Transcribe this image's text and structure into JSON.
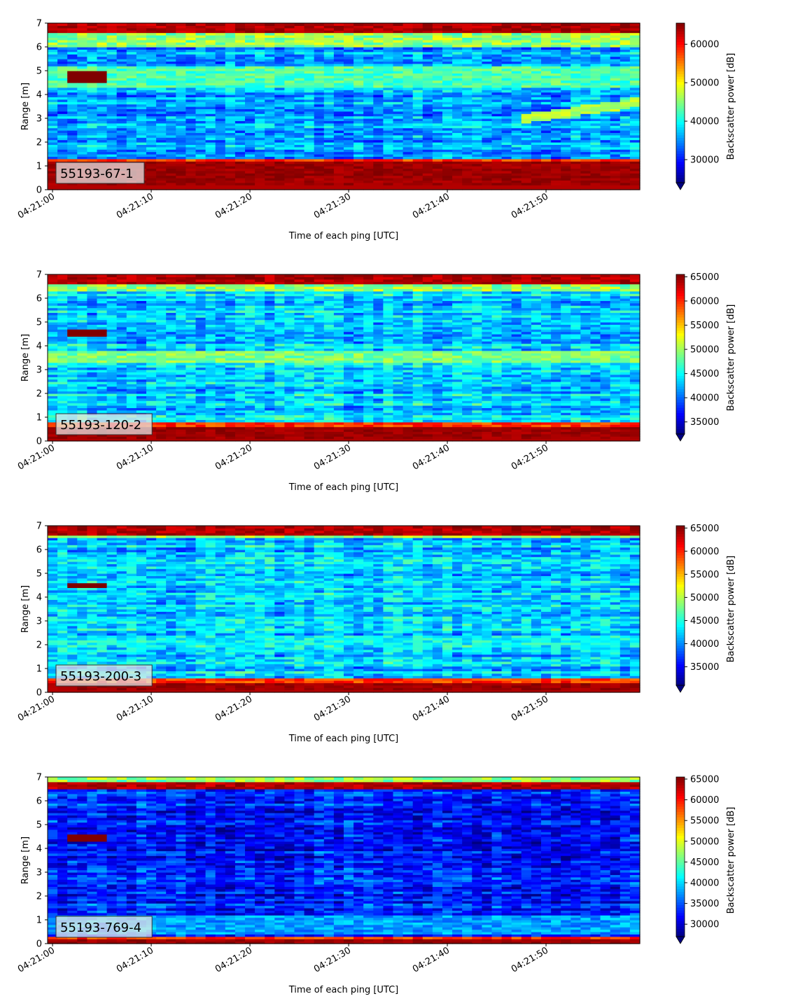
{
  "chart_data": [
    {
      "type": "heatmap",
      "label": "55193-67-1",
      "xlabel": "Time of each ping [UTC]",
      "ylabel": "Range [m]",
      "colorbar_label": "Backscatter power [dB]",
      "colormap": "jet",
      "xlim": [
        "04:20:59.5",
        "04:21:59.5"
      ],
      "ylim": [
        0,
        7
      ],
      "yticks": [
        0,
        1,
        2,
        3,
        4,
        5,
        6,
        7
      ],
      "xticks": [
        "04:21:00",
        "04:21:10",
        "04:21:20",
        "04:21:30",
        "04:21:40",
        "04:21:50"
      ],
      "clim": [
        24000,
        65500
      ],
      "cticks": [
        30000,
        40000,
        50000,
        60000
      ],
      "features": {
        "bottom_band": [
          0.2,
          1.3
        ],
        "surface_band": [
          6.6,
          7.0
        ],
        "near_surface_band": [
          6.0,
          6.6
        ],
        "target": {
          "t_start": 1.5,
          "t_end": 5.5,
          "range": 4.75,
          "width": 0.5
        },
        "extra_band": {
          "range": [
            4.3,
            5.2
          ],
          "level": 0.45
        },
        "slant_feature": {
          "t_start": 48,
          "t_end": 59.5,
          "range_start": 3.0,
          "range_end": 3.7
        }
      },
      "background_level": 0.28
    },
    {
      "type": "heatmap",
      "label": "55193-120-2",
      "xlabel": "Time of each ping [UTC]",
      "ylabel": "Range [m]",
      "colorbar_label": "Backscatter power [dB]",
      "colormap": "jet",
      "xlim": [
        "04:20:59.5",
        "04:21:59.5"
      ],
      "ylim": [
        0,
        7
      ],
      "yticks": [
        0,
        1,
        2,
        3,
        4,
        5,
        6,
        7
      ],
      "xticks": [
        "04:21:00",
        "04:21:10",
        "04:21:20",
        "04:21:30",
        "04:21:40",
        "04:21:50"
      ],
      "clim": [
        32500,
        65500
      ],
      "cticks": [
        35000,
        40000,
        45000,
        50000,
        55000,
        60000,
        65000
      ],
      "features": {
        "bottom_band": [
          0.1,
          0.75
        ],
        "surface_band": [
          6.65,
          7.0
        ],
        "near_surface_band": [
          6.3,
          6.65
        ],
        "target": {
          "t_start": 1.5,
          "t_end": 5.5,
          "range": 4.55,
          "width": 0.3
        },
        "extra_band": {
          "range": [
            3.3,
            3.8
          ],
          "level": 0.5
        }
      },
      "background_level": 0.33
    },
    {
      "type": "heatmap",
      "label": "55193-200-3",
      "xlabel": "Time of each ping [UTC]",
      "ylabel": "Range [m]",
      "colorbar_label": "Backscatter power [dB]",
      "colormap": "jet",
      "xlim": [
        "04:20:59.5",
        "04:21:59.5"
      ],
      "ylim": [
        0,
        7
      ],
      "yticks": [
        0,
        1,
        2,
        3,
        4,
        5,
        6,
        7
      ],
      "xticks": [
        "04:21:00",
        "04:21:10",
        "04:21:20",
        "04:21:30",
        "04:21:40",
        "04:21:50"
      ],
      "clim": [
        31000,
        65500
      ],
      "cticks": [
        35000,
        40000,
        45000,
        50000,
        55000,
        60000,
        65000
      ],
      "features": {
        "bottom_band": [
          0.1,
          0.6
        ],
        "surface_band": [
          6.6,
          7.0
        ],
        "near_surface_band": [
          6.5,
          6.6
        ],
        "target": {
          "t_start": 1.5,
          "t_end": 5.5,
          "range": 4.5,
          "width": 0.25
        },
        "extra_band": {
          "range": [
            2.0,
            2.4
          ],
          "level": 0.38
        }
      },
      "background_level": 0.33
    },
    {
      "type": "heatmap",
      "label": "55193-769-4",
      "xlabel": "Time of each ping [UTC]",
      "ylabel": "Range [m]",
      "colorbar_label": "Backscatter power [dB]",
      "colormap": "jet",
      "xlim": [
        "04:20:59.5",
        "04:21:59.5"
      ],
      "ylim": [
        0,
        7
      ],
      "yticks": [
        0,
        1,
        2,
        3,
        4,
        5,
        6,
        7
      ],
      "xticks": [
        "04:21:00",
        "04:21:10",
        "04:21:20",
        "04:21:30",
        "04:21:40",
        "04:21:50"
      ],
      "clim": [
        27000,
        65500
      ],
      "cticks": [
        30000,
        35000,
        40000,
        45000,
        50000,
        55000,
        60000,
        65000
      ],
      "features": {
        "bottom_band": [
          0.05,
          0.35
        ],
        "surface_band": [
          6.5,
          6.75
        ],
        "near_surface_band": [
          6.75,
          7.0
        ],
        "target": {
          "t_start": 2.0,
          "t_end": 5.5,
          "range": 4.45,
          "width": 0.2
        },
        "extra_band": {
          "range": [
            0.4,
            1.2
          ],
          "level": 0.28
        }
      },
      "background_level": 0.15
    }
  ]
}
